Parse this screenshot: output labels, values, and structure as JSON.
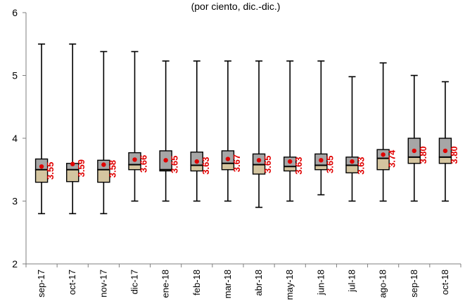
{
  "chart_data": {
    "type": "boxplot",
    "title": "(por ciento, dic.-dic.)",
    "xlabel": "",
    "ylabel": "",
    "ylim": [
      2,
      6
    ],
    "yticks": [
      2,
      3,
      4,
      5,
      6
    ],
    "grid": false,
    "legend": "none",
    "colors": {
      "box_lower": "#d4c5a0",
      "box_upper": "#a6a6a6",
      "mean_dot": "#e00000",
      "mean_label": "#e00000",
      "line": "#000000",
      "axis": "#7f7f7f"
    },
    "categories": [
      "sep-17",
      "oct-17",
      "nov-17",
      "dic-17",
      "ene-18",
      "feb-18",
      "mar-18",
      "abr-18",
      "may-18",
      "jun-18",
      "jul-18",
      "ago-18",
      "sep-18",
      "oct-18"
    ],
    "series": [
      {
        "category": "sep-17",
        "min": 2.8,
        "q1": 3.3,
        "median": 3.5,
        "q3": 3.67,
        "max": 5.5,
        "mean": 3.55,
        "mean_label": "3.55"
      },
      {
        "category": "oct-17",
        "min": 2.8,
        "q1": 3.31,
        "median": 3.5,
        "q3": 3.6,
        "max": 5.5,
        "mean": 3.59,
        "mean_label": "3.59"
      },
      {
        "category": "nov-17",
        "min": 2.8,
        "q1": 3.3,
        "median": 3.5,
        "q3": 3.65,
        "max": 5.38,
        "mean": 3.58,
        "mean_label": "3.58"
      },
      {
        "category": "dic-17",
        "min": 3.0,
        "q1": 3.5,
        "median": 3.58,
        "q3": 3.77,
        "max": 5.38,
        "mean": 3.66,
        "mean_label": "3.66"
      },
      {
        "category": "ene-18",
        "min": 3.0,
        "q1": 3.48,
        "median": 3.5,
        "q3": 3.8,
        "max": 5.23,
        "mean": 3.65,
        "mean_label": "3.65"
      },
      {
        "category": "feb-18",
        "min": 3.0,
        "q1": 3.48,
        "median": 3.57,
        "q3": 3.78,
        "max": 5.23,
        "mean": 3.63,
        "mean_label": "3.63"
      },
      {
        "category": "mar-18",
        "min": 3.0,
        "q1": 3.5,
        "median": 3.6,
        "q3": 3.8,
        "max": 5.23,
        "mean": 3.67,
        "mean_label": "3.67"
      },
      {
        "category": "abr-18",
        "min": 2.9,
        "q1": 3.43,
        "median": 3.58,
        "q3": 3.75,
        "max": 5.23,
        "mean": 3.65,
        "mean_label": "3.65"
      },
      {
        "category": "may-18",
        "min": 3.0,
        "q1": 3.48,
        "median": 3.55,
        "q3": 3.7,
        "max": 5.23,
        "mean": 3.63,
        "mean_label": "3.63"
      },
      {
        "category": "jun-18",
        "min": 3.1,
        "q1": 3.5,
        "median": 3.57,
        "q3": 3.75,
        "max": 5.23,
        "mean": 3.65,
        "mean_label": "3.65"
      },
      {
        "category": "jul-18",
        "min": 3.0,
        "q1": 3.45,
        "median": 3.57,
        "q3": 3.7,
        "max": 4.98,
        "mean": 3.63,
        "mean_label": "3.63"
      },
      {
        "category": "ago-18",
        "min": 3.0,
        "q1": 3.5,
        "median": 3.68,
        "q3": 3.82,
        "max": 5.2,
        "mean": 3.74,
        "mean_label": "3.74"
      },
      {
        "category": "sep-18",
        "min": 3.0,
        "q1": 3.6,
        "median": 3.7,
        "q3": 4.0,
        "max": 5.0,
        "mean": 3.8,
        "mean_label": "3.80"
      },
      {
        "category": "oct-18",
        "min": 3.0,
        "q1": 3.6,
        "median": 3.7,
        "q3": 4.0,
        "max": 4.9,
        "mean": 3.8,
        "mean_label": "3.80"
      }
    ]
  }
}
